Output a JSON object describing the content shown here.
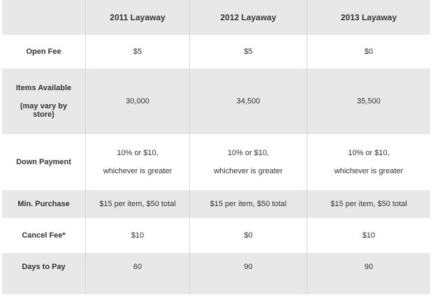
{
  "columns": [
    "2011 Layaway",
    "2012 Layaway",
    "2013 Layaway"
  ],
  "rows": [
    {
      "label_lines": [
        "Open Fee"
      ],
      "values": [
        [
          "$5"
        ],
        [
          "$5"
        ],
        [
          "$0"
        ]
      ]
    },
    {
      "label_lines": [
        "Items Available",
        "(may vary by",
        "store)"
      ],
      "values": [
        [
          "30,000"
        ],
        [
          "34,500"
        ],
        [
          "35,500"
        ]
      ]
    },
    {
      "label_lines": [
        "Down Payment"
      ],
      "values": [
        [
          "10% or $10,",
          "whichever is greater"
        ],
        [
          "10% or $10,",
          "whichever is greater"
        ],
        [
          "10% or $10,",
          "whichever is greater"
        ]
      ]
    },
    {
      "label_lines": [
        "Min. Purchase"
      ],
      "values": [
        [
          "$15 per item, $50 total"
        ],
        [
          "$15 per item, $50 total"
        ],
        [
          "$15 per item, $50 total"
        ]
      ]
    },
    {
      "label_lines": [
        "Cancel Fee*"
      ],
      "values": [
        [
          "$10"
        ],
        [
          "$0"
        ],
        [
          "$10"
        ]
      ]
    },
    {
      "label_lines": [
        "Days to Pay"
      ],
      "values": [
        [
          "60"
        ],
        [
          "90"
        ],
        [
          "90"
        ]
      ]
    }
  ],
  "colors": {
    "shaded_row": "#e8e8e8",
    "white_row": "#ffffff",
    "column_divider": "#d6d6d6",
    "text": "#333333"
  }
}
